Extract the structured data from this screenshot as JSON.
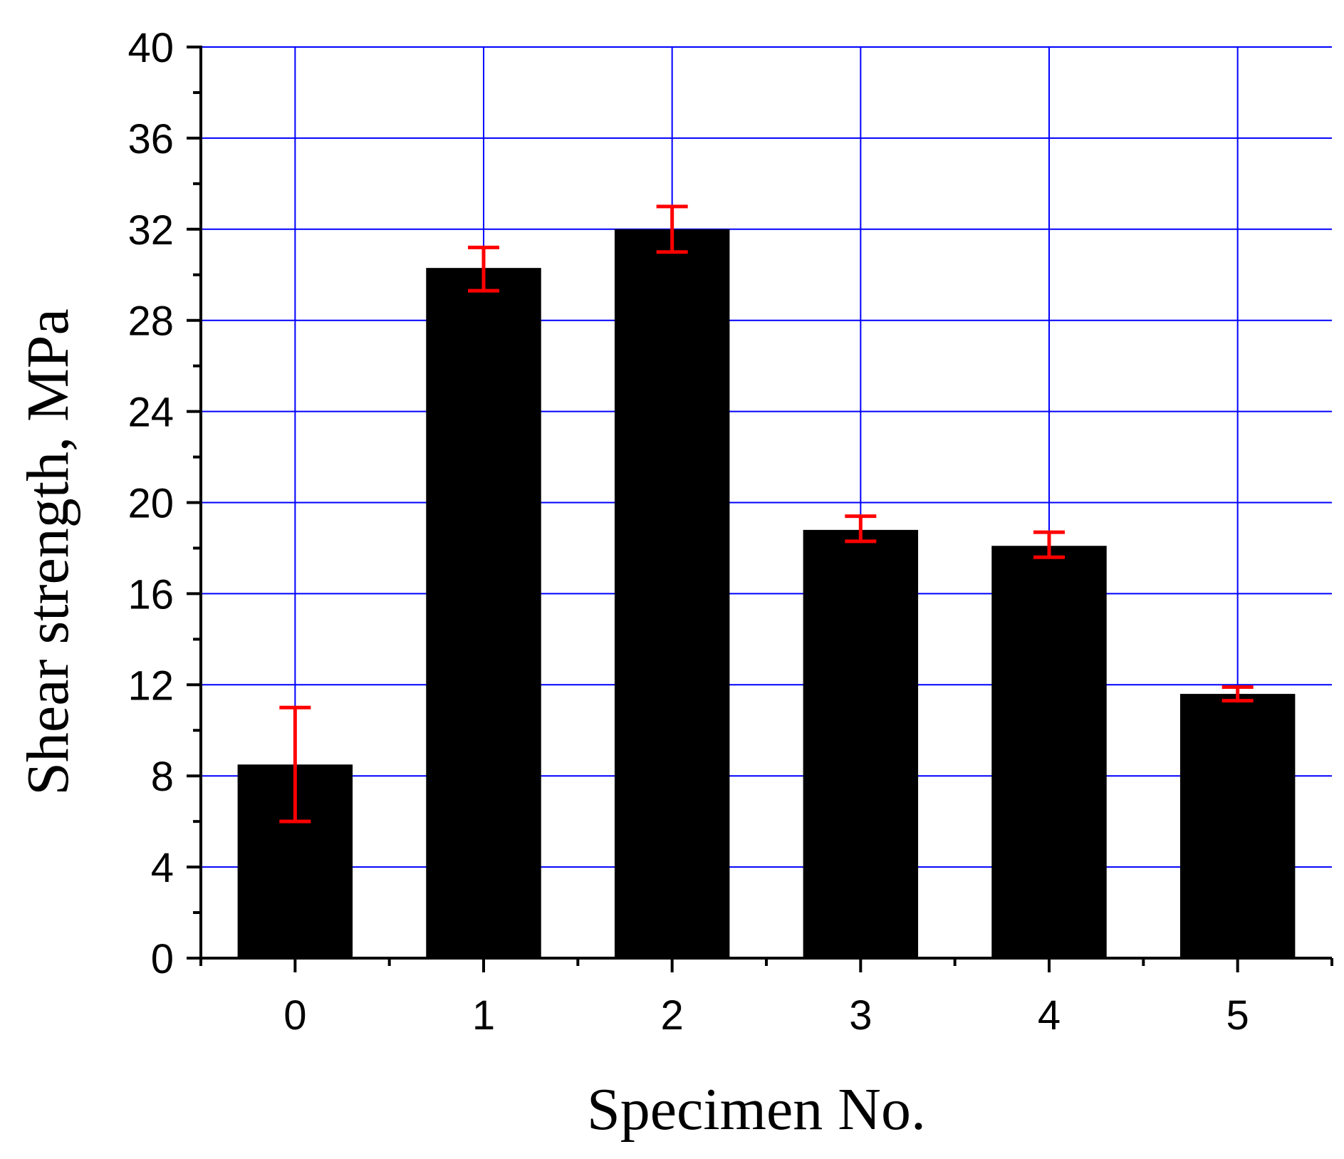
{
  "chart_data": {
    "type": "bar",
    "title": "",
    "xlabel": "Specimen No.",
    "ylabel": "Shear strength, MPa",
    "categories": [
      "0",
      "1",
      "2",
      "3",
      "4",
      "5"
    ],
    "values": [
      8.5,
      30.3,
      32.0,
      18.8,
      18.1,
      11.6
    ],
    "error_upper": [
      11.0,
      31.2,
      33.0,
      19.4,
      18.7,
      11.9
    ],
    "error_lower": [
      6.0,
      29.3,
      31.0,
      18.3,
      17.6,
      11.3
    ],
    "ylim": [
      0,
      40
    ],
    "xlim": [
      -0.5,
      5.5
    ],
    "yticks": [
      0,
      4,
      8,
      12,
      16,
      20,
      24,
      28,
      32,
      36,
      40
    ],
    "grid": true,
    "colors": {
      "bar": "#000000",
      "error_bar": "#ff0000",
      "grid": "#0000ff",
      "axis": "#000000"
    }
  }
}
